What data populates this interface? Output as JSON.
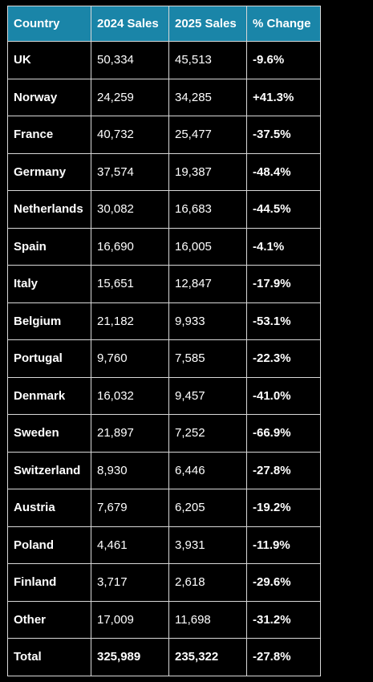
{
  "table": {
    "header": [
      "Country",
      "2024 Sales",
      "2025 Sales",
      "% Change"
    ],
    "rows": [
      [
        "UK",
        "50,334",
        "45,513",
        "-9.6%"
      ],
      [
        "Norway",
        "24,259",
        "34,285",
        "+41.3%"
      ],
      [
        "France",
        "40,732",
        "25,477",
        "-37.5%"
      ],
      [
        "Germany",
        "37,574",
        "19,387",
        "-48.4%"
      ],
      [
        "Netherlands",
        "30,082",
        "16,683",
        "-44.5%"
      ],
      [
        "Spain",
        "16,690",
        "16,005",
        "-4.1%"
      ],
      [
        "Italy",
        "15,651",
        "12,847",
        "-17.9%"
      ],
      [
        "Belgium",
        "21,182",
        "9,933",
        "-53.1%"
      ],
      [
        "Portugal",
        "9,760",
        "7,585",
        "-22.3%"
      ],
      [
        "Denmark",
        "16,032",
        "9,457",
        "-41.0%"
      ],
      [
        "Sweden",
        "21,897",
        "7,252",
        "-66.9%"
      ],
      [
        "Switzerland",
        "8,930",
        "6,446",
        "-27.8%"
      ],
      [
        "Austria",
        "7,679",
        "6,205",
        "-19.2%"
      ],
      [
        "Poland",
        "4,461",
        "3,931",
        "-11.9%"
      ],
      [
        "Finland",
        "3,717",
        "2,618",
        "-29.6%"
      ],
      [
        "Other",
        "17,009",
        "11,698",
        "-31.2%"
      ],
      [
        "Total",
        "325,989",
        "235,322",
        "-27.8%"
      ]
    ]
  }
}
